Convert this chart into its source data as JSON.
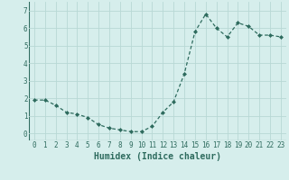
{
  "x": [
    0,
    1,
    2,
    3,
    4,
    5,
    6,
    7,
    8,
    9,
    10,
    11,
    12,
    13,
    14,
    15,
    16,
    17,
    18,
    19,
    20,
    21,
    22,
    23
  ],
  "y": [
    1.9,
    1.9,
    1.6,
    1.2,
    1.1,
    0.9,
    0.5,
    0.3,
    0.2,
    0.1,
    0.1,
    0.4,
    1.2,
    1.8,
    3.4,
    5.8,
    6.8,
    6.0,
    5.5,
    6.3,
    6.1,
    5.6,
    5.6,
    5.5
  ],
  "line_color": "#2e6b5e",
  "marker": "D",
  "markersize": 2.0,
  "linewidth": 0.9,
  "xlabel": "Humidex (Indice chaleur)",
  "xlabel_fontsize": 7,
  "xlabel_fontweight": "bold",
  "ylabel_ticks": [
    0,
    1,
    2,
    3,
    4,
    5,
    6,
    7
  ],
  "xlim": [
    -0.5,
    23.5
  ],
  "ylim": [
    -0.4,
    7.5
  ],
  "bg_color": "#d6eeec",
  "grid_color": "#b8d8d5",
  "tick_fontsize": 5.5
}
